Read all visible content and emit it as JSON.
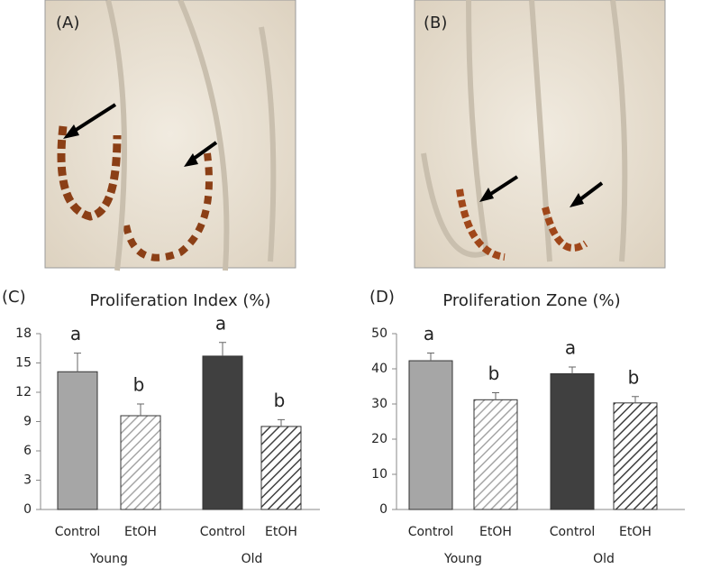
{
  "images": [
    {
      "label": "(A)"
    },
    {
      "label": "(B)"
    }
  ],
  "chart_data": [
    {
      "type": "bar",
      "panel": "(C)",
      "title": "Proliferation Index (%)",
      "categories": [
        "Control",
        "EtOH",
        "Control",
        "EtOH"
      ],
      "groups": [
        "Young",
        "Old"
      ],
      "values": [
        14.1,
        9.6,
        15.7,
        8.5
      ],
      "errors": [
        1.9,
        1.2,
        1.4,
        0.7
      ],
      "annotations": [
        "a",
        "b",
        "a",
        "b"
      ],
      "colors": [
        "#a6a6a6",
        "#a6a6a6",
        "#404040",
        "#404040"
      ],
      "hatched": [
        false,
        true,
        false,
        true
      ],
      "ylim": [
        0,
        18
      ],
      "yticks": [
        0,
        3,
        6,
        9,
        12,
        15,
        18
      ]
    },
    {
      "type": "bar",
      "panel": "(D)",
      "title": "Proliferation Zone (%)",
      "categories": [
        "Control",
        "EtOH",
        "Control",
        "EtOH"
      ],
      "groups": [
        "Young",
        "Old"
      ],
      "values": [
        42.3,
        31.2,
        38.6,
        30.3
      ],
      "errors": [
        2.2,
        2.0,
        1.9,
        1.8
      ],
      "annotations": [
        "a",
        "b",
        "a",
        "b"
      ],
      "colors": [
        "#a6a6a6",
        "#a6a6a6",
        "#404040",
        "#404040"
      ],
      "hatched": [
        false,
        true,
        false,
        true
      ],
      "ylim": [
        0,
        50
      ],
      "yticks": [
        0,
        10,
        20,
        30,
        40,
        50
      ]
    }
  ]
}
